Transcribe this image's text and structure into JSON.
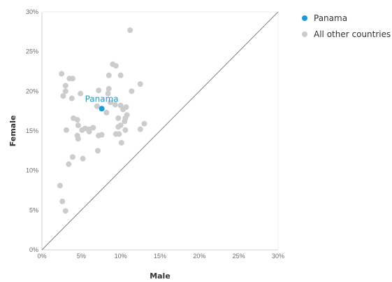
{
  "chart_data": {
    "type": "scatter",
    "xlabel": "Male",
    "ylabel": "Female",
    "xlim": [
      0,
      30
    ],
    "ylim": [
      0,
      30
    ],
    "x_ticks": [
      "0%",
      "5%",
      "10%",
      "15%",
      "20%",
      "25%",
      "30%"
    ],
    "y_ticks": [
      "0%",
      "5%",
      "10%",
      "15%",
      "20%",
      "25%",
      "30%"
    ],
    "reference_line": "y = x",
    "grid": false,
    "legend_position": "top-right",
    "legend": [
      {
        "label": "Panama",
        "color": "#1a9bd7"
      },
      {
        "label": "All other countries",
        "color": "#cccccc"
      }
    ],
    "series": [
      {
        "name": "Panama",
        "color": "#1a9bd7",
        "points": [
          {
            "x": 7.6,
            "y": 17.8,
            "label": "Panama"
          }
        ]
      },
      {
        "name": "All other countries",
        "color": "#cccccc",
        "points": [
          {
            "x": 11.2,
            "y": 27.7
          },
          {
            "x": 9.0,
            "y": 23.4
          },
          {
            "x": 9.4,
            "y": 23.2
          },
          {
            "x": 2.5,
            "y": 22.2
          },
          {
            "x": 8.5,
            "y": 22.0
          },
          {
            "x": 10.0,
            "y": 22.0
          },
          {
            "x": 3.5,
            "y": 21.6
          },
          {
            "x": 3.9,
            "y": 21.6
          },
          {
            "x": 12.5,
            "y": 20.9
          },
          {
            "x": 3.0,
            "y": 20.7
          },
          {
            "x": 8.5,
            "y": 20.3
          },
          {
            "x": 7.2,
            "y": 20.1
          },
          {
            "x": 11.4,
            "y": 20.0
          },
          {
            "x": 3.0,
            "y": 20.0
          },
          {
            "x": 8.4,
            "y": 19.7
          },
          {
            "x": 4.9,
            "y": 19.7
          },
          {
            "x": 2.7,
            "y": 19.4
          },
          {
            "x": 3.8,
            "y": 19.1
          },
          {
            "x": 8.7,
            "y": 18.6
          },
          {
            "x": 9.3,
            "y": 18.3
          },
          {
            "x": 10.0,
            "y": 18.2
          },
          {
            "x": 10.7,
            "y": 18.0
          },
          {
            "x": 7.0,
            "y": 18.1
          },
          {
            "x": 10.3,
            "y": 17.7
          },
          {
            "x": 8.2,
            "y": 17.3
          },
          {
            "x": 10.8,
            "y": 17.0
          },
          {
            "x": 10.6,
            "y": 16.6
          },
          {
            "x": 9.7,
            "y": 16.6
          },
          {
            "x": 4.0,
            "y": 16.6
          },
          {
            "x": 4.5,
            "y": 16.4
          },
          {
            "x": 10.5,
            "y": 16.2
          },
          {
            "x": 13.0,
            "y": 15.9
          },
          {
            "x": 4.6,
            "y": 15.7
          },
          {
            "x": 10.0,
            "y": 15.7
          },
          {
            "x": 9.7,
            "y": 15.5
          },
          {
            "x": 6.5,
            "y": 15.4
          },
          {
            "x": 5.5,
            "y": 15.3
          },
          {
            "x": 5.1,
            "y": 15.1
          },
          {
            "x": 6.0,
            "y": 15.2
          },
          {
            "x": 12.5,
            "y": 15.2
          },
          {
            "x": 6.0,
            "y": 14.9
          },
          {
            "x": 3.1,
            "y": 15.1
          },
          {
            "x": 10.6,
            "y": 15.1
          },
          {
            "x": 9.8,
            "y": 14.6
          },
          {
            "x": 7.6,
            "y": 14.5
          },
          {
            "x": 7.2,
            "y": 14.4
          },
          {
            "x": 4.5,
            "y": 14.4
          },
          {
            "x": 9.4,
            "y": 14.6
          },
          {
            "x": 4.6,
            "y": 14.0
          },
          {
            "x": 10.1,
            "y": 13.5
          },
          {
            "x": 7.1,
            "y": 12.5
          },
          {
            "x": 3.9,
            "y": 11.7
          },
          {
            "x": 5.2,
            "y": 11.5
          },
          {
            "x": 3.4,
            "y": 10.8
          },
          {
            "x": 2.3,
            "y": 8.1
          },
          {
            "x": 2.6,
            "y": 6.1
          },
          {
            "x": 3.0,
            "y": 4.9
          }
        ]
      }
    ]
  }
}
